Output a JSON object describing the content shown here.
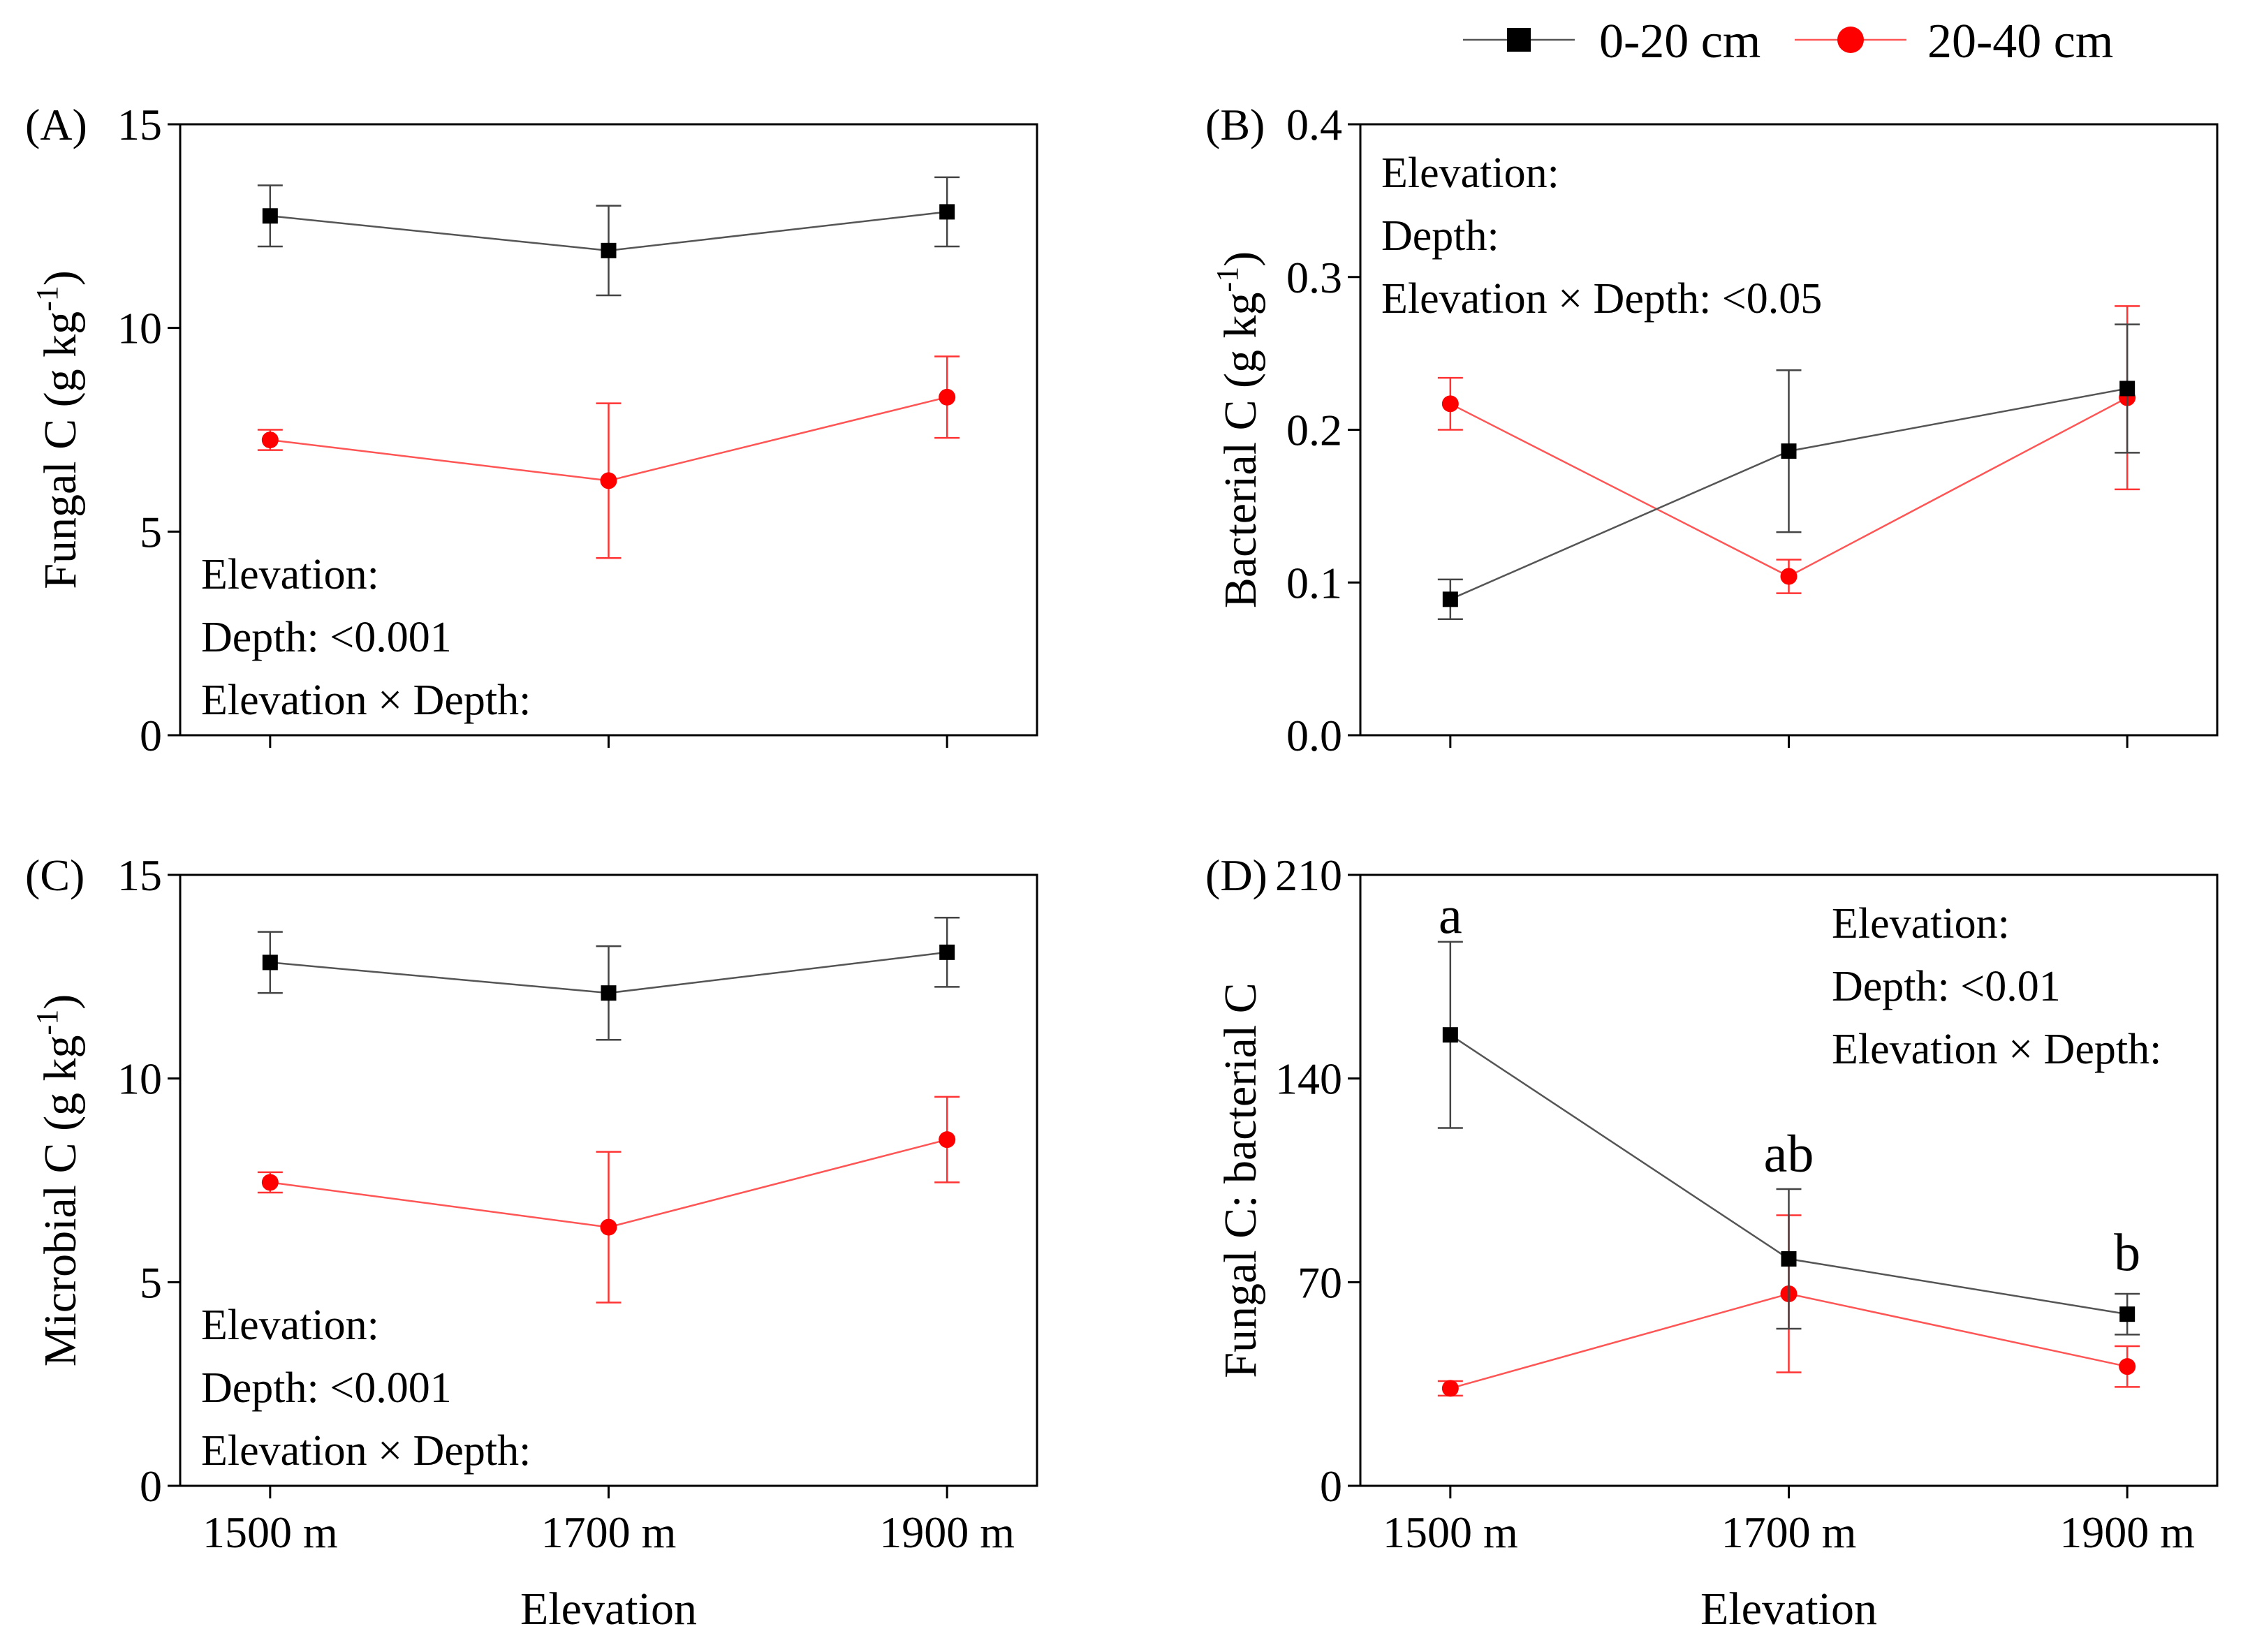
{
  "legend": {
    "series": [
      {
        "name": "0-20 cm",
        "color": "#000000",
        "marker": "square"
      },
      {
        "name": "20-40 cm",
        "color": "#ff0000",
        "marker": "circle"
      }
    ]
  },
  "shared": {
    "x_categories": [
      "1500 m",
      "1700 m",
      "1900 m"
    ],
    "x_title": "Elevation"
  },
  "chart_data": [
    {
      "id": "A",
      "panel_label": "(A)",
      "type": "line",
      "ylabel": "Fungal C (g kg",
      "ylabel_sup": "-1",
      "ylabel_close": ")",
      "ylim": [
        0,
        15
      ],
      "yticks": [
        0,
        5,
        10,
        15
      ],
      "ytick_labels": [
        "0",
        "5",
        "10",
        "15"
      ],
      "categories": [
        "1500 m",
        "1700 m",
        "1900 m"
      ],
      "show_x_ticks_labels": false,
      "series": [
        {
          "name": "0-20 cm",
          "values": [
            12.75,
            11.9,
            12.85
          ],
          "errors": [
            0.75,
            1.1,
            0.85
          ]
        },
        {
          "name": "20-40 cm",
          "values": [
            7.25,
            6.25,
            8.3
          ],
          "errors": [
            0.25,
            1.9,
            1.0
          ]
        }
      ],
      "stats": [
        "Elevation:",
        "Depth: <0.001",
        "Elevation × Depth:"
      ],
      "stats_anchor": "bottom-left",
      "letters": []
    },
    {
      "id": "B",
      "panel_label": "(B)",
      "type": "line",
      "ylabel": "Bacterial C (g kg",
      "ylabel_sup": "-1",
      "ylabel_close": ")",
      "ylim": [
        0,
        0.4
      ],
      "yticks": [
        0,
        0.1,
        0.2,
        0.3,
        0.4
      ],
      "ytick_labels": [
        "0.0",
        "0.1",
        "0.2",
        "0.3",
        "0.4"
      ],
      "categories": [
        "1500 m",
        "1700 m",
        "1900 m"
      ],
      "show_x_ticks_labels": false,
      "series": [
        {
          "name": "0-20 cm",
          "values": [
            0.089,
            0.186,
            0.227
          ],
          "errors": [
            0.013,
            0.053,
            0.042
          ]
        },
        {
          "name": "20-40 cm",
          "values": [
            0.217,
            0.104,
            0.221
          ],
          "errors": [
            0.017,
            0.011,
            0.06
          ]
        }
      ],
      "stats": [
        "Elevation:",
        "Depth:",
        "Elevation × Depth: <0.05"
      ],
      "stats_anchor": "top-left",
      "letters": []
    },
    {
      "id": "C",
      "panel_label": "(C)",
      "type": "line",
      "ylabel": "Microbial C (g kg",
      "ylabel_sup": "-1",
      "ylabel_close": ")",
      "ylim": [
        0,
        15
      ],
      "yticks": [
        0,
        5,
        10,
        15
      ],
      "ytick_labels": [
        "0",
        "5",
        "10",
        "15"
      ],
      "categories": [
        "1500 m",
        "1700 m",
        "1900 m"
      ],
      "show_x_ticks_labels": true,
      "series": [
        {
          "name": "0-20 cm",
          "values": [
            12.85,
            12.1,
            13.1
          ],
          "errors": [
            0.75,
            1.15,
            0.85
          ]
        },
        {
          "name": "20-40 cm",
          "values": [
            7.45,
            6.35,
            8.5
          ],
          "errors": [
            0.25,
            1.85,
            1.05
          ]
        }
      ],
      "stats": [
        "Elevation:",
        "Depth: <0.001",
        "Elevation × Depth:"
      ],
      "stats_anchor": "bottom-left",
      "letters": []
    },
    {
      "id": "D",
      "panel_label": "(D)",
      "type": "line",
      "ylabel": "Fungal C: bacterial C",
      "ylabel_sup": "",
      "ylabel_close": "",
      "ylim": [
        0,
        210
      ],
      "yticks": [
        0,
        70,
        140,
        210
      ],
      "ytick_labels": [
        "0",
        "70",
        "140",
        "210"
      ],
      "categories": [
        "1500 m",
        "1700 m",
        "1900 m"
      ],
      "show_x_ticks_labels": true,
      "series": [
        {
          "name": "0-20 cm",
          "values": [
            155,
            78,
            59
          ],
          "errors": [
            32,
            24,
            7
          ]
        },
        {
          "name": "20-40 cm",
          "values": [
            33.5,
            66,
            41
          ],
          "errors": [
            2.5,
            27,
            7
          ]
        }
      ],
      "stats": [
        "Elevation:",
        "Depth: <0.01",
        "Elevation × Depth:"
      ],
      "stats_anchor": "top-right",
      "letters": [
        {
          "text": "a",
          "category_index": 0,
          "value": 190
        },
        {
          "text": "ab",
          "category_index": 1,
          "value": 108
        },
        {
          "text": "b",
          "category_index": 2,
          "value": 74
        }
      ]
    }
  ]
}
